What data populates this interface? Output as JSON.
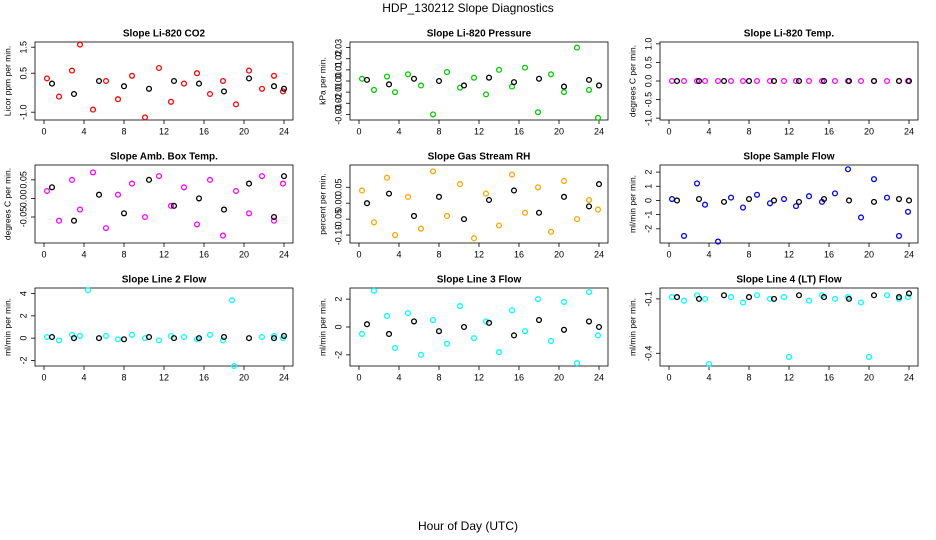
{
  "title": "HDP_130212  Slope Diagnostics",
  "xlabel": "Hour of Day (UTC)",
  "chart_data": [
    {
      "type": "scatter",
      "title": "Slope Li-820 CO2",
      "ylabel": "Licor ppm per min.",
      "xlim": [
        -0.9,
        24.9
      ],
      "xticks": [
        0,
        4,
        8,
        12,
        16,
        20,
        24
      ],
      "ylim": [
        -1.3,
        1.7
      ],
      "yticks": [
        1.5,
        0.5,
        {
          "value": -1,
          "label": "-1.0"
        }
      ],
      "series": [
        {
          "color": "#ff0000",
          "x": [
            0.3,
            1.5,
            2.8,
            3.6,
            4.9,
            6.2,
            7.4,
            8.8,
            10.1,
            11.5,
            12.7,
            14,
            15.3,
            16.6,
            17.9,
            19.2,
            20.5,
            21.8,
            23,
            23.9
          ],
          "values": [
            0.3,
            -0.4,
            0.6,
            1.6,
            -0.9,
            0.2,
            -0.5,
            0.4,
            -1.2,
            0.7,
            -0.6,
            0.1,
            0.5,
            -0.3,
            0.2,
            -0.7,
            0.6,
            -0.1,
            0.4,
            -0.2
          ]
        },
        {
          "color": "#000000",
          "x": [
            0.8,
            3,
            5.5,
            8,
            10.5,
            13,
            15.5,
            18,
            20.5,
            23,
            24
          ],
          "values": [
            0.1,
            -0.3,
            0.2,
            0.0,
            -0.1,
            0.2,
            0.1,
            -0.2,
            0.3,
            0.0,
            -0.1
          ]
        }
      ]
    },
    {
      "type": "scatter",
      "title": "Slope Li-820 Pressure",
      "ylabel": "kPa per min.",
      "xlim": [
        -0.9,
        24.9
      ],
      "xticks": [
        0,
        4,
        8,
        12,
        16,
        20,
        24
      ],
      "ylim": [
        -0.035,
        0.035
      ],
      "yticks": [
        0.03,
        0.02,
        0.01,
        {
          "value": 0,
          "label": "0.00"
        },
        -0.01,
        -0.02,
        -0.03
      ],
      "series": [
        {
          "color": "#00cc00",
          "x": [
            0.3,
            1.5,
            2.8,
            3.6,
            4.9,
            6.2,
            7.4,
            8.8,
            10.1,
            11.5,
            12.7,
            14,
            15.3,
            16.6,
            17.9,
            19.2,
            20.5,
            21.8,
            23,
            23.9
          ],
          "values": [
            0.002,
            -0.008,
            0.004,
            -0.01,
            0.006,
            -0.004,
            -0.03,
            0.008,
            -0.006,
            0.003,
            -0.012,
            0.01,
            -0.005,
            0.012,
            -0.028,
            0.006,
            -0.01,
            0.03,
            -0.008,
            -0.033
          ]
        },
        {
          "color": "#000000",
          "x": [
            0.8,
            3,
            5.5,
            8,
            10.5,
            13,
            15.5,
            18,
            20.5,
            23,
            24
          ],
          "values": [
            0.001,
            -0.003,
            0.002,
            0,
            -0.004,
            0.003,
            -0.001,
            0.002,
            -0.005,
            0.001,
            -0.004
          ]
        }
      ]
    },
    {
      "type": "scatter",
      "title": "Slope Li-820 Temp.",
      "ylabel": "degrees C per min.",
      "xlim": [
        -0.9,
        24.9
      ],
      "xticks": [
        0,
        4,
        8,
        12,
        16,
        20,
        24
      ],
      "ylim": [
        -1.05,
        1.05
      ],
      "yticks": [
        {
          "value": 1,
          "label": "1.0"
        },
        0.5,
        {
          "value": 0,
          "label": "0.0"
        },
        -0.5,
        {
          "value": -1,
          "label": "-1.0"
        }
      ],
      "series": [
        {
          "color": "#ff00ff",
          "x": [
            0.3,
            1.5,
            2.8,
            3.6,
            4.9,
            6.2,
            7.4,
            8.8,
            10.1,
            11.5,
            12.7,
            14,
            15.3,
            16.6,
            17.9,
            19.2,
            20.5,
            21.8,
            23,
            23.9
          ],
          "values": [
            0,
            0,
            0,
            0,
            0,
            0,
            0,
            0,
            0,
            0,
            0,
            0,
            0,
            0,
            0,
            0,
            0,
            0,
            0,
            0
          ]
        },
        {
          "color": "#000000",
          "x": [
            0.8,
            3,
            5.5,
            8,
            10.5,
            13,
            15.5,
            18,
            20.5,
            23,
            24
          ],
          "values": [
            0,
            0,
            0,
            0,
            0,
            0,
            0,
            0,
            0,
            0,
            0
          ]
        }
      ]
    },
    {
      "type": "scatter",
      "title": "Slope Amb. Box Temp.",
      "ylabel": "degrees C per min.",
      "xlim": [
        -0.9,
        24.9
      ],
      "xticks": [
        0,
        4,
        8,
        12,
        16,
        20,
        24
      ],
      "ylim": [
        -0.12,
        0.09
      ],
      "yticks": [
        0.05,
        {
          "value": 0,
          "label": "0.00"
        },
        -0.05
      ],
      "series": [
        {
          "color": "#ff00ff",
          "x": [
            0.3,
            1.5,
            2.8,
            3.6,
            4.9,
            6.2,
            7.4,
            8.8,
            10.1,
            11.5,
            12.7,
            14,
            15.3,
            16.6,
            17.9,
            19.2,
            20.5,
            21.8,
            23,
            23.9
          ],
          "values": [
            0.02,
            -0.06,
            0.05,
            -0.03,
            0.07,
            -0.08,
            0.01,
            0.04,
            -0.05,
            0.06,
            -0.02,
            0.03,
            -0.07,
            0.05,
            -0.1,
            0.02,
            -0.04,
            0.06,
            -0.06,
            0.04
          ]
        },
        {
          "color": "#000000",
          "x": [
            0.8,
            3,
            5.5,
            8,
            10.5,
            13,
            15.5,
            18,
            20.5,
            23,
            24
          ],
          "values": [
            0.03,
            -0.06,
            0.01,
            -0.04,
            0.05,
            -0.02,
            0.0,
            -0.03,
            0.04,
            -0.05,
            0.06
          ]
        }
      ]
    },
    {
      "type": "scatter",
      "title": "Slope Gas Stream RH",
      "ylabel": "percent per min.",
      "xlim": [
        -0.9,
        24.9
      ],
      "xticks": [
        0,
        4,
        8,
        12,
        16,
        20,
        24
      ],
      "ylim": [
        -0.125,
        0.12
      ],
      "yticks": [
        0.05,
        {
          "value": 0,
          "label": "0.00"
        },
        -0.05,
        {
          "value": -0.1,
          "label": "-0.10"
        }
      ],
      "series": [
        {
          "color": "#ffa500",
          "x": [
            0.3,
            1.5,
            2.8,
            3.6,
            4.9,
            6.2,
            7.4,
            8.8,
            10.1,
            11.5,
            12.7,
            14,
            15.3,
            16.6,
            17.9,
            19.2,
            20.5,
            21.8,
            23,
            23.9
          ],
          "values": [
            0.04,
            -0.06,
            0.08,
            -0.1,
            0.02,
            -0.08,
            0.1,
            -0.04,
            0.06,
            -0.11,
            0.03,
            -0.07,
            0.09,
            -0.03,
            0.05,
            -0.09,
            0.07,
            -0.05,
            0.01,
            -0.02
          ]
        },
        {
          "color": "#000000",
          "x": [
            0.8,
            3,
            5.5,
            8,
            10.5,
            13,
            15.5,
            18,
            20.5,
            23,
            24
          ],
          "values": [
            0.0,
            0.03,
            -0.04,
            0.02,
            -0.05,
            0.01,
            0.04,
            -0.03,
            0.02,
            -0.01,
            0.06
          ]
        }
      ]
    },
    {
      "type": "scatter",
      "title": "Slope Sample Flow",
      "ylabel": "ml/min per min.",
      "xlim": [
        -0.9,
        24.9
      ],
      "xticks": [
        0,
        4,
        8,
        12,
        16,
        20,
        24
      ],
      "ylim": [
        -3,
        2.5
      ],
      "yticks": [
        2,
        1,
        0,
        -1,
        -2
      ],
      "series": [
        {
          "color": "#0000ff",
          "x": [
            0.3,
            1.5,
            2.8,
            3.6,
            4.9,
            6.2,
            7.4,
            8.8,
            10.1,
            11.5,
            12.7,
            14,
            15.3,
            16.6,
            17.9,
            19.2,
            20.5,
            21.8,
            23,
            23.9
          ],
          "values": [
            0.1,
            -2.5,
            1.2,
            -0.3,
            -2.9,
            0.2,
            -0.5,
            0.4,
            -0.2,
            0.1,
            -0.4,
            0.3,
            -0.1,
            0.5,
            2.2,
            -1.2,
            1.5,
            0.2,
            -2.5,
            -0.8
          ]
        },
        {
          "color": "#000000",
          "x": [
            0.8,
            3,
            5.5,
            8,
            10.5,
            13,
            15.5,
            18,
            20.5,
            23,
            24
          ],
          "values": [
            0,
            0.1,
            -0.1,
            0.1,
            0,
            -0.1,
            0.1,
            0,
            -0.1,
            0.1,
            0
          ]
        }
      ]
    },
    {
      "type": "scatter",
      "title": "Slope Line 2 Flow",
      "ylabel": "ml/min per min.",
      "xlim": [
        -0.9,
        24.9
      ],
      "xticks": [
        0,
        4,
        8,
        12,
        16,
        20,
        24
      ],
      "ylim": [
        -2.5,
        4.5
      ],
      "yticks": [
        4,
        2,
        0,
        -2
      ],
      "series": [
        {
          "color": "#00ffff",
          "x": [
            0.3,
            1.5,
            2.8,
            3.6,
            4.4,
            6.2,
            7.4,
            8.8,
            10.1,
            11.5,
            12.7,
            14,
            15.3,
            16.6,
            17.9,
            18.8,
            19,
            21.8,
            23,
            23.9
          ],
          "values": [
            0.1,
            -0.2,
            0.3,
            0.2,
            4.3,
            0.2,
            -0.1,
            0.3,
            0.0,
            -0.2,
            0.2,
            0.1,
            -0.1,
            0.3,
            -0.2,
            3.4,
            -2.5,
            0.1,
            0.2,
            0.0
          ]
        },
        {
          "color": "#000000",
          "x": [
            0.8,
            3,
            5.5,
            8,
            10.5,
            13,
            15.5,
            18,
            20.5,
            23,
            24
          ],
          "values": [
            0.1,
            0,
            0,
            -0.1,
            0.1,
            0,
            0,
            0.1,
            0,
            0,
            0.2
          ]
        }
      ]
    },
    {
      "type": "scatter",
      "title": "Slope Line 3 Flow",
      "ylabel": "ml/min per min.",
      "xlim": [
        -0.9,
        24.9
      ],
      "xticks": [
        0,
        4,
        8,
        12,
        16,
        20,
        24
      ],
      "ylim": [
        -2.8,
        2.8
      ],
      "yticks": [
        2,
        0,
        -2
      ],
      "series": [
        {
          "color": "#00ffff",
          "x": [
            0.3,
            1.5,
            2.8,
            3.6,
            4.9,
            6.2,
            7.4,
            8.8,
            10.1,
            11.5,
            12.7,
            14,
            15.3,
            16.6,
            17.9,
            19.2,
            20.5,
            21.8,
            23,
            23.9
          ],
          "values": [
            -0.5,
            2.6,
            0.8,
            -1.5,
            1.0,
            -2.0,
            0.5,
            -1.2,
            1.5,
            -0.8,
            0.4,
            -1.8,
            1.2,
            -0.3,
            2.0,
            -1.0,
            1.8,
            -2.6,
            2.5,
            -0.6
          ]
        },
        {
          "color": "#000000",
          "x": [
            0.8,
            3,
            5.5,
            8,
            10.5,
            13,
            15.5,
            18,
            20.5,
            23,
            24
          ],
          "values": [
            0.2,
            -0.5,
            0.4,
            -0.3,
            0.0,
            0.3,
            -0.6,
            0.5,
            -0.2,
            0.4,
            0.0
          ]
        }
      ]
    },
    {
      "type": "scatter",
      "title": "Slope Line 4 (LT) Flow",
      "ylabel": "ml/min per min.",
      "xlim": [
        -0.9,
        24.9
      ],
      "xticks": [
        0,
        4,
        8,
        12,
        16,
        20,
        24
      ],
      "ylim": [
        -0.47,
        -0.04
      ],
      "yticks": [
        -0.1,
        -0.4
      ],
      "series": [
        {
          "color": "#00ffff",
          "x": [
            0.3,
            1.5,
            2.8,
            3.6,
            4,
            6.2,
            7.4,
            8.8,
            10.1,
            11.5,
            12,
            14,
            15.3,
            16.6,
            17.9,
            19.2,
            20,
            21.8,
            23,
            23.9
          ],
          "values": [
            -0.09,
            -0.11,
            -0.08,
            -0.1,
            -0.46,
            -0.09,
            -0.12,
            -0.08,
            -0.1,
            -0.09,
            -0.42,
            -0.11,
            -0.08,
            -0.1,
            -0.09,
            -0.12,
            -0.42,
            -0.08,
            -0.1,
            -0.09
          ]
        },
        {
          "color": "#000000",
          "x": [
            0.8,
            3,
            5.5,
            8,
            10.5,
            13,
            15.5,
            18,
            20.5,
            23,
            24
          ],
          "values": [
            -0.09,
            -0.1,
            -0.08,
            -0.09,
            -0.1,
            -0.08,
            -0.09,
            -0.1,
            -0.08,
            -0.09,
            -0.07
          ]
        }
      ]
    }
  ]
}
